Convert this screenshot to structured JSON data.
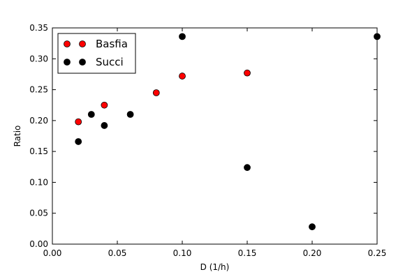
{
  "chart_data": {
    "type": "scatter",
    "xlabel": "D (1/h)",
    "ylabel": "Ratio",
    "xlim": [
      0,
      0.25
    ],
    "ylim": [
      0,
      0.35
    ],
    "xticks": [
      0,
      0.05,
      0.1,
      0.15,
      0.2,
      0.25
    ],
    "xtick_labels": [
      "0.00",
      "0.05",
      "0.10",
      "0.15",
      "0.20",
      "0.25"
    ],
    "yticks": [
      0,
      0.05,
      0.1,
      0.15,
      0.2,
      0.25,
      0.3,
      0.35
    ],
    "ytick_labels": [
      "0.00",
      "0.05",
      "0.10",
      "0.15",
      "0.20",
      "0.25",
      "0.30",
      "0.35"
    ],
    "grid": false,
    "legend_position": "top-left",
    "series": [
      {
        "name": "Basfia",
        "color": "#ff0000",
        "x": [
          0.02,
          0.04,
          0.08,
          0.1,
          0.15
        ],
        "y": [
          0.198,
          0.225,
          0.245,
          0.272,
          0.277
        ]
      },
      {
        "name": "Succi",
        "color": "#000000",
        "x": [
          0.02,
          0.03,
          0.04,
          0.06,
          0.1,
          0.15,
          0.2,
          0.25
        ],
        "y": [
          0.166,
          0.21,
          0.192,
          0.21,
          0.336,
          0.124,
          0.028,
          0.336
        ]
      }
    ]
  }
}
